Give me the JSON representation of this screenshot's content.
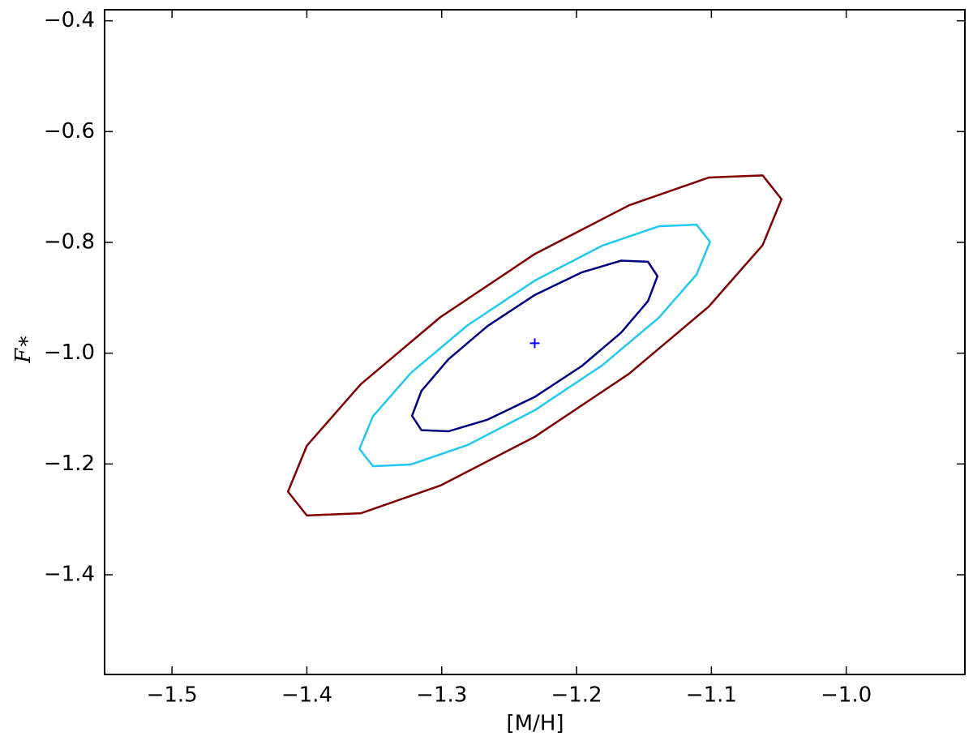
{
  "chart_data": {
    "type": "contour",
    "xlabel": "[M/H]",
    "ylabel": "F∗",
    "xlim": [
      -1.55,
      -0.912
    ],
    "ylim": [
      -1.58,
      -0.38
    ],
    "xticks": [
      {
        "value": -1.5,
        "label": "−1.5"
      },
      {
        "value": -1.4,
        "label": "−1.4"
      },
      {
        "value": -1.3,
        "label": "−1.3"
      },
      {
        "value": -1.2,
        "label": "−1.2"
      },
      {
        "value": -1.1,
        "label": "−1.1"
      },
      {
        "value": -1.0,
        "label": "−1.0"
      }
    ],
    "yticks": [
      {
        "value": -0.4,
        "label": "−0.4"
      },
      {
        "value": -0.6,
        "label": "−0.6"
      },
      {
        "value": -0.8,
        "label": "−0.8"
      },
      {
        "value": -1.0,
        "label": "−1.0"
      },
      {
        "value": -1.2,
        "label": "−1.2"
      },
      {
        "value": -1.4,
        "label": "−1.4"
      }
    ],
    "series": [
      {
        "color": "#7f0000",
        "x": [
          -1.048,
          -1.062,
          -1.102,
          -1.161,
          -1.231,
          -1.301,
          -1.36,
          -1.4,
          -1.414,
          -1.4,
          -1.36,
          -1.301,
          -1.231,
          -1.161,
          -1.102,
          -1.062
        ],
        "values": [
          -0.722,
          -0.679,
          -0.683,
          -0.733,
          -0.821,
          -0.935,
          -1.056,
          -1.167,
          -1.25,
          -1.293,
          -1.289,
          -1.239,
          -1.151,
          -1.037,
          -0.916,
          -0.805
        ]
      },
      {
        "color": "#22c8f0",
        "x": [
          -1.101,
          -1.111,
          -1.139,
          -1.181,
          -1.231,
          -1.281,
          -1.323,
          -1.351,
          -1.361,
          -1.351,
          -1.323,
          -1.281,
          -1.231,
          -1.181,
          -1.139,
          -1.111
        ],
        "values": [
          -0.799,
          -0.768,
          -0.771,
          -0.806,
          -0.869,
          -0.95,
          -1.036,
          -1.114,
          -1.173,
          -1.204,
          -1.201,
          -1.166,
          -1.103,
          -1.022,
          -0.936,
          -0.858
        ]
      },
      {
        "color": "#000080",
        "x": [
          -1.14,
          -1.147,
          -1.167,
          -1.196,
          -1.231,
          -1.266,
          -1.295,
          -1.315,
          -1.322,
          -1.315,
          -1.295,
          -1.266,
          -1.231,
          -1.196,
          -1.167,
          -1.147
        ],
        "values": [
          -0.861,
          -0.835,
          -0.833,
          -0.854,
          -0.895,
          -0.951,
          -1.011,
          -1.068,
          -1.113,
          -1.139,
          -1.141,
          -1.12,
          -1.079,
          -1.023,
          -0.963,
          -0.906
        ]
      }
    ],
    "marker": {
      "x": -1.231,
      "y": -0.982,
      "color": "#0000ff"
    }
  }
}
